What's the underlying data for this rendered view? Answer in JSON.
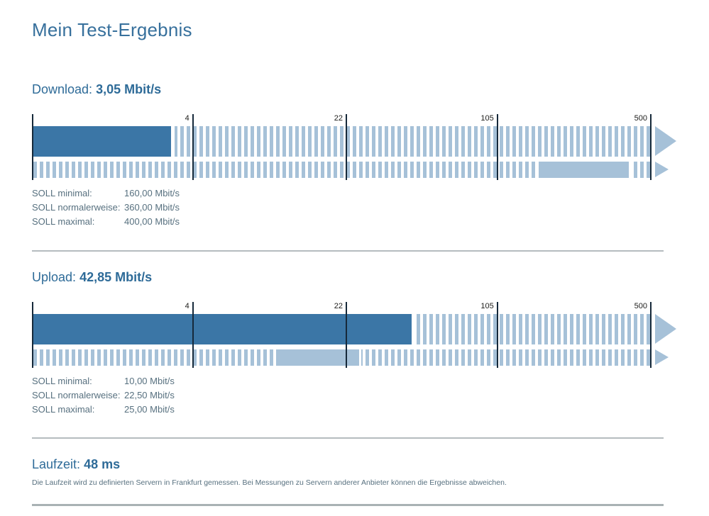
{
  "page": {
    "title": "Mein Test-Ergebnis"
  },
  "colors": {
    "title": "#37709c",
    "heading": "#2e6b98",
    "body_text": "#57707f",
    "bar_measured": "#3b76a6",
    "bar_target_and_stripes": "#a6c1d8",
    "tick_line": "#16293a",
    "divider": "#b5bcbf"
  },
  "chart_data": [
    {
      "type": "bar",
      "subtype": "log-gauge",
      "title": "Download",
      "unit": "Mbit/s",
      "measured_value": 3.05,
      "target_min": 160,
      "target_normal": 360,
      "target_max": 400,
      "ticks": [
        4,
        22,
        105,
        500
      ],
      "scale": "log",
      "scale_anchor_values": [
        0.6,
        4,
        22,
        105,
        500
      ],
      "scale_anchor_percents": [
        0,
        26.0,
        50.8,
        75.2,
        100
      ],
      "legend_position": "none",
      "grid": false
    },
    {
      "type": "bar",
      "subtype": "log-gauge",
      "title": "Upload",
      "unit": "Mbit/s",
      "measured_value": 42.85,
      "target_min": 10,
      "target_normal": 22.5,
      "target_max": 25,
      "ticks": [
        4,
        22,
        105,
        500
      ],
      "scale": "log",
      "scale_anchor_values": [
        0.6,
        4,
        22,
        105,
        500
      ],
      "scale_anchor_percents": [
        0,
        26.0,
        50.8,
        75.2,
        100
      ],
      "legend_position": "none",
      "grid": false
    }
  ],
  "sections": [
    {
      "heading_label": "Download:",
      "heading_value": "3,05 Mbit/s",
      "rows": [
        {
          "label": "SOLL minimal:",
          "value": "160,00 Mbit/s"
        },
        {
          "label": "SOLL normalerweise:",
          "value": "360,00 Mbit/s"
        },
        {
          "label": "SOLL maximal:",
          "value": "400,00 Mbit/s"
        }
      ]
    },
    {
      "heading_label": "Upload:",
      "heading_value": "42,85 Mbit/s",
      "rows": [
        {
          "label": "SOLL minimal:",
          "value": "10,00 Mbit/s"
        },
        {
          "label": "SOLL normalerweise:",
          "value": "22,50 Mbit/s"
        },
        {
          "label": "SOLL maximal:",
          "value": "25,00 Mbit/s"
        }
      ]
    }
  ],
  "latency": {
    "heading_label": "Laufzeit:",
    "heading_value": "48 ms",
    "note": "Die Laufzeit wird zu definierten Servern in Frankfurt gemessen. Bei Messungen zu Servern anderer Anbieter können die Ergebnisse abweichen."
  }
}
